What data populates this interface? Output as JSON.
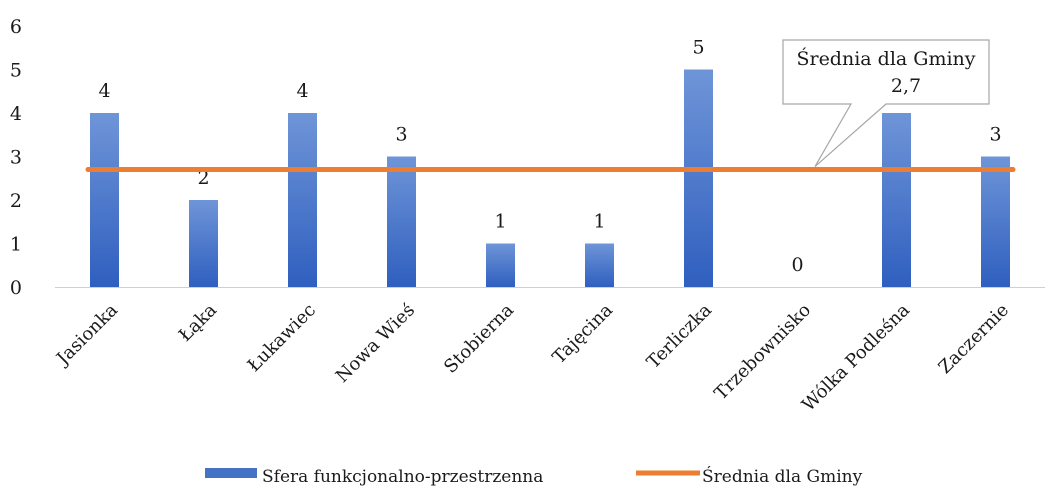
{
  "chart_data": {
    "type": "bar",
    "categories": [
      "Jasionka",
      "Łąka",
      "Łukawiec",
      "Nowa Wieś",
      "Stobierna",
      "Tajęcina",
      "Terliczka",
      "Trzebownisko",
      "Wólka Podleśna",
      "Zaczernie"
    ],
    "series": [
      {
        "name": "Sfera funkcjonalno-przestrzenna",
        "values": [
          4,
          2,
          4,
          3,
          1,
          1,
          5,
          0,
          4,
          3
        ],
        "data_labels": [
          "4",
          "2",
          "4",
          "3",
          "1",
          "1",
          "5",
          "0",
          "4",
          "3"
        ],
        "color": "#4472C4"
      },
      {
        "name": "Średnia dla Gminy",
        "type": "line",
        "value": 2.7,
        "color": "#ED7D31"
      }
    ],
    "y_ticks": [
      "0",
      "1",
      "2",
      "3",
      "4",
      "5",
      "6"
    ],
    "ylim": [
      0,
      6
    ],
    "grid": false,
    "legend_position": "bottom",
    "annotation": {
      "line1": "Średnia dla Gminy",
      "line2": "2,7"
    }
  }
}
